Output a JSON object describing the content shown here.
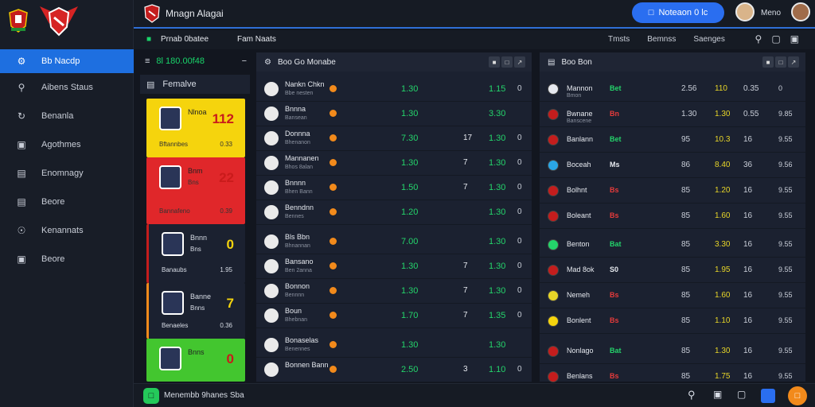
{
  "app": {
    "title": "Mnagn Alagai"
  },
  "topbar": {
    "cta_label": "Noteaon 0 lc",
    "user_label": "Meno"
  },
  "subbar": {
    "left_label": "Prnab 0batee",
    "left_label2": "Fam Naats",
    "tabs": [
      "Tmsts",
      "Bemnss",
      "Saenges"
    ]
  },
  "sidebar": {
    "items": [
      {
        "label": "Bb Nacdp",
        "icon": "gamepad-icon",
        "active": true
      },
      {
        "label": "Aibens Staus",
        "icon": "search-icon"
      },
      {
        "label": "Benanla",
        "icon": "refresh-icon"
      },
      {
        "label": "Agothmes",
        "icon": "monitor-icon"
      },
      {
        "label": "Enomnagy",
        "icon": "desktop-icon"
      },
      {
        "label": "Beore",
        "icon": "document-icon"
      },
      {
        "label": "Kenannats",
        "icon": "shield-icon"
      },
      {
        "label": "Beore",
        "icon": "monitor-icon"
      }
    ]
  },
  "left_panel": {
    "header": "8l 180.00f48",
    "sub": "Femalve",
    "cards": [
      {
        "name": "Nlnoa",
        "sub": "",
        "big": "112",
        "foot": "Bftannbes",
        "foot2": "0.33",
        "color": "#f5d40d"
      },
      {
        "name": "Bnm",
        "sub": "Bns",
        "big": "22",
        "foot": "Bannafeno",
        "foot2": "0.39",
        "color": "#e0272a"
      },
      {
        "name": "Bnnn",
        "sub": "Bns",
        "big": "0",
        "foot": "Banaubs",
        "foot2": "1.95",
        "color": "#1b2130"
      },
      {
        "name": "Banne",
        "sub": "Bnns",
        "big": "7",
        "foot": "Benaeles",
        "foot2": "0.36",
        "color": "#1b2130"
      },
      {
        "name": "Bnns",
        "sub": "",
        "big": "0",
        "foot": "",
        "foot2": "",
        "color": "#43c62f"
      }
    ]
  },
  "middle_panel": {
    "header": "Boo Go Monabe",
    "rows": [
      {
        "name": "Nankn Chkn",
        "sub": "Bbe nesten",
        "v1": "1.30",
        "v2": "",
        "v3": "1.15",
        "v4": "0"
      },
      {
        "name": "Bnnna",
        "sub": "Bansean",
        "v1": "1.30",
        "v2": "",
        "v3": "3.30",
        "v4": ""
      },
      {
        "name": "Donnna",
        "sub": "Bhenanon",
        "v1": "7.30",
        "v2": "17",
        "v3": "1.30",
        "v4": "0"
      },
      {
        "name": "Mannanen",
        "sub": "Bhos 8alan",
        "v1": "1.30",
        "v2": "7",
        "v3": "1.30",
        "v4": "0"
      },
      {
        "name": "Bnnnn",
        "sub": "Bhen Bann",
        "v1": "1.50",
        "v2": "7",
        "v3": "1.30",
        "v4": "0"
      },
      {
        "name": "Benndnn",
        "sub": "Bennes",
        "v1": "1.20",
        "v2": "",
        "v3": "1.30",
        "v4": "0"
      },
      {
        "name": "Bls Bbn",
        "sub": "Bhnannan",
        "v1": "7.00",
        "v2": "",
        "v3": "1.30",
        "v4": "0"
      },
      {
        "name": "Bansano",
        "sub": "Ben 2anna",
        "v1": "1.30",
        "v2": "7",
        "v3": "1.30",
        "v4": "0"
      },
      {
        "name": "Bonnon",
        "sub": "Bennnn",
        "v1": "1.30",
        "v2": "7",
        "v3": "1.30",
        "v4": "0"
      },
      {
        "name": "Boun",
        "sub": "Bhebnan",
        "v1": "1.70",
        "v2": "7",
        "v3": "1.35",
        "v4": "0"
      },
      {
        "name": "Bonaselas",
        "sub": "Benennes",
        "v1": "1.30",
        "v2": "",
        "v3": "1.30",
        "v4": ""
      },
      {
        "name": "Bonnen Bann",
        "sub": "",
        "v1": "2.50",
        "v2": "3",
        "v3": "1.10",
        "v4": "0"
      }
    ]
  },
  "right_panel": {
    "header": "Boo Bon",
    "rows": [
      {
        "name": "Mannon",
        "sub": "Bmon",
        "tag": "Bet",
        "tagc": "#24d46b",
        "c1": "2.56",
        "c2": "110",
        "c3": "0.35",
        "c4": "0"
      },
      {
        "name": "Bwnane",
        "sub": "Banscene",
        "tag": "Bn",
        "tagc": "#e63b3b",
        "c1": "1.30",
        "c2": "1.30",
        "c3": "0.55",
        "c4": "9.85"
      },
      {
        "name": "Banlann",
        "sub": "",
        "tag": "Bet",
        "tagc": "#24d46b",
        "c1": "95",
        "c2": "10.3",
        "c3": "16",
        "c4": "9.55"
      },
      {
        "name": "Boceah",
        "sub": "",
        "tag": "Ms",
        "tagc": "#e6e9ef",
        "c1": "86",
        "c2": "8.40",
        "c3": "36",
        "c4": "9.56"
      },
      {
        "name": "Bolhnt",
        "sub": "",
        "tag": "Bs",
        "tagc": "#e63b3b",
        "c1": "85",
        "c2": "1.20",
        "c3": "16",
        "c4": "9.55"
      },
      {
        "name": "Boleant",
        "sub": "",
        "tag": "Bs",
        "tagc": "#e63b3b",
        "c1": "85",
        "c2": "1.60",
        "c3": "16",
        "c4": "9.55"
      },
      {
        "name": "Benton",
        "sub": "",
        "tag": "Bat",
        "tagc": "#24d46b",
        "c1": "85",
        "c2": "3.30",
        "c3": "16",
        "c4": "9.55"
      },
      {
        "name": "Mad 8ok",
        "sub": "",
        "tag": "S0",
        "tagc": "#e6e9ef",
        "c1": "85",
        "c2": "1.95",
        "c3": "16",
        "c4": "9.55"
      },
      {
        "name": "Nemeh",
        "sub": "",
        "tag": "Bs",
        "tagc": "#e63b3b",
        "c1": "85",
        "c2": "1.60",
        "c3": "16",
        "c4": "9.55"
      },
      {
        "name": "Bonlent",
        "sub": "",
        "tag": "Bs",
        "tagc": "#e63b3b",
        "c1": "85",
        "c2": "1.10",
        "c3": "16",
        "c4": "9.55"
      },
      {
        "name": "Nonlago",
        "sub": "",
        "tag": "Bat",
        "tagc": "#24d46b",
        "c1": "85",
        "c2": "1.30",
        "c3": "16",
        "c4": "9.55"
      },
      {
        "name": "Benlans",
        "sub": "",
        "tag": "Bs",
        "tagc": "#e63b3b",
        "c1": "85",
        "c2": "1.75",
        "c3": "16",
        "c4": "9.55"
      }
    ]
  },
  "bottombar": {
    "label": "Menembb 9hanes Sba"
  }
}
